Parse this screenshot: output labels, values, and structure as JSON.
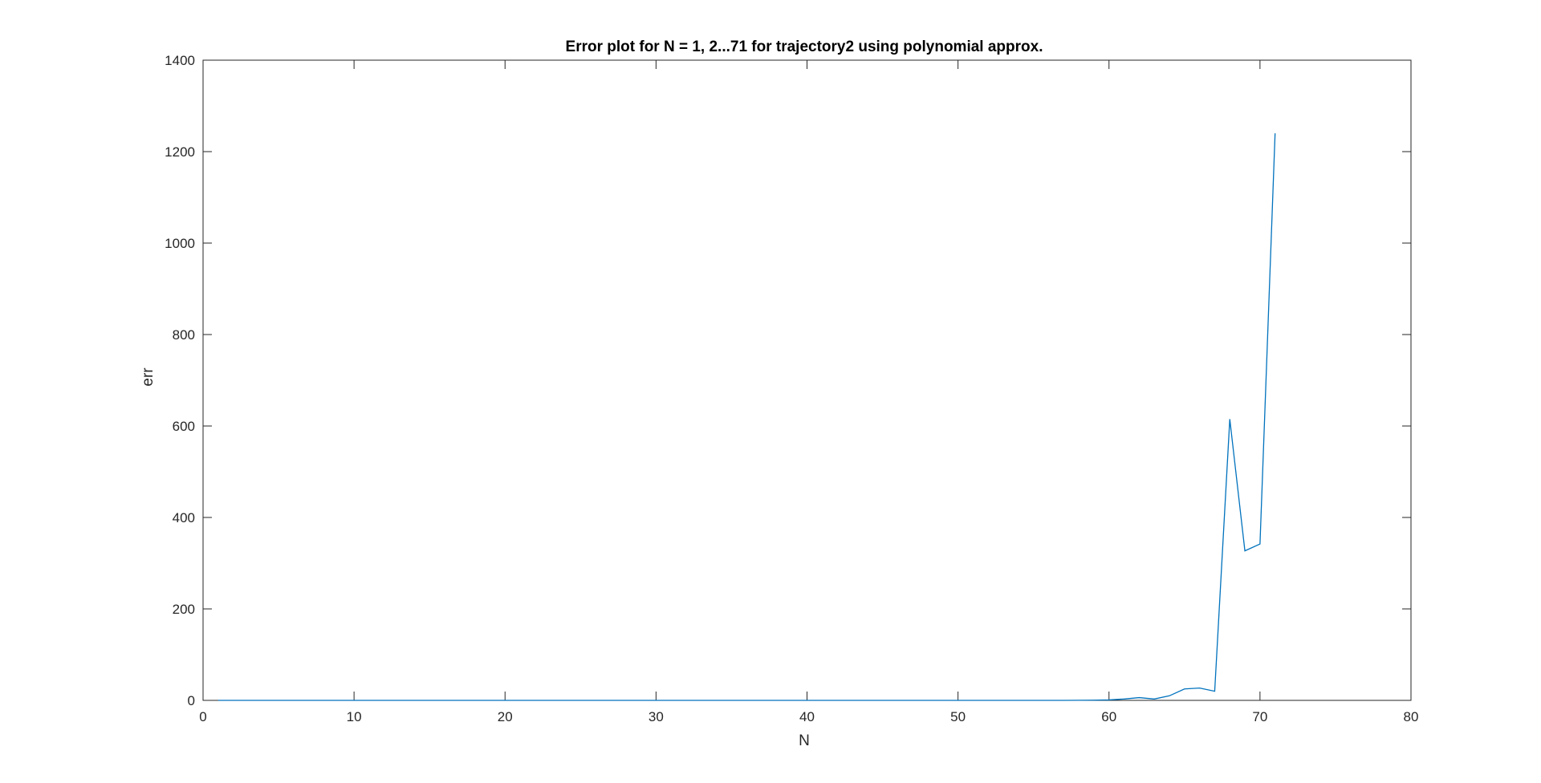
{
  "chart_data": {
    "type": "line",
    "title": "Error plot for N = 1, 2...71 for trajectory2 using polynomial approx.",
    "xlabel": "N",
    "ylabel": "err",
    "xlim": [
      0,
      80
    ],
    "ylim": [
      0,
      1400
    ],
    "xticks": [
      0,
      10,
      20,
      30,
      40,
      50,
      60,
      70,
      80
    ],
    "yticks": [
      0,
      200,
      400,
      600,
      800,
      1000,
      1200,
      1400
    ],
    "grid": false,
    "box": true,
    "line_color": "#0072bd",
    "series": [
      {
        "x": [
          1,
          2,
          3,
          4,
          5,
          6,
          7,
          8,
          9,
          10,
          11,
          12,
          13,
          14,
          15,
          16,
          17,
          18,
          19,
          20,
          21,
          22,
          23,
          24,
          25,
          26,
          27,
          28,
          29,
          30,
          31,
          32,
          33,
          34,
          35,
          36,
          37,
          38,
          39,
          40,
          41,
          42,
          43,
          44,
          45,
          46,
          47,
          48,
          49,
          50,
          51,
          52,
          53,
          54,
          55,
          56,
          57,
          58,
          59,
          60,
          61,
          62,
          63,
          64,
          65,
          66,
          67,
          68,
          69,
          70,
          71
        ],
        "values": [
          0,
          0,
          0,
          0,
          0,
          0,
          0,
          0,
          0,
          0,
          0,
          0,
          0,
          0,
          0,
          0,
          0,
          0,
          0,
          0,
          0,
          0,
          0,
          0,
          0,
          0,
          0,
          0,
          0,
          0,
          0,
          0,
          0,
          0,
          0,
          0,
          0,
          0,
          0,
          0,
          0,
          0,
          0,
          0,
          0,
          0,
          0,
          0,
          0,
          0,
          0,
          0,
          0,
          0,
          0,
          0,
          0,
          0.2,
          0.5,
          1,
          3,
          6,
          3,
          10,
          25,
          27,
          20,
          615,
          327,
          342,
          1240
        ]
      }
    ]
  }
}
